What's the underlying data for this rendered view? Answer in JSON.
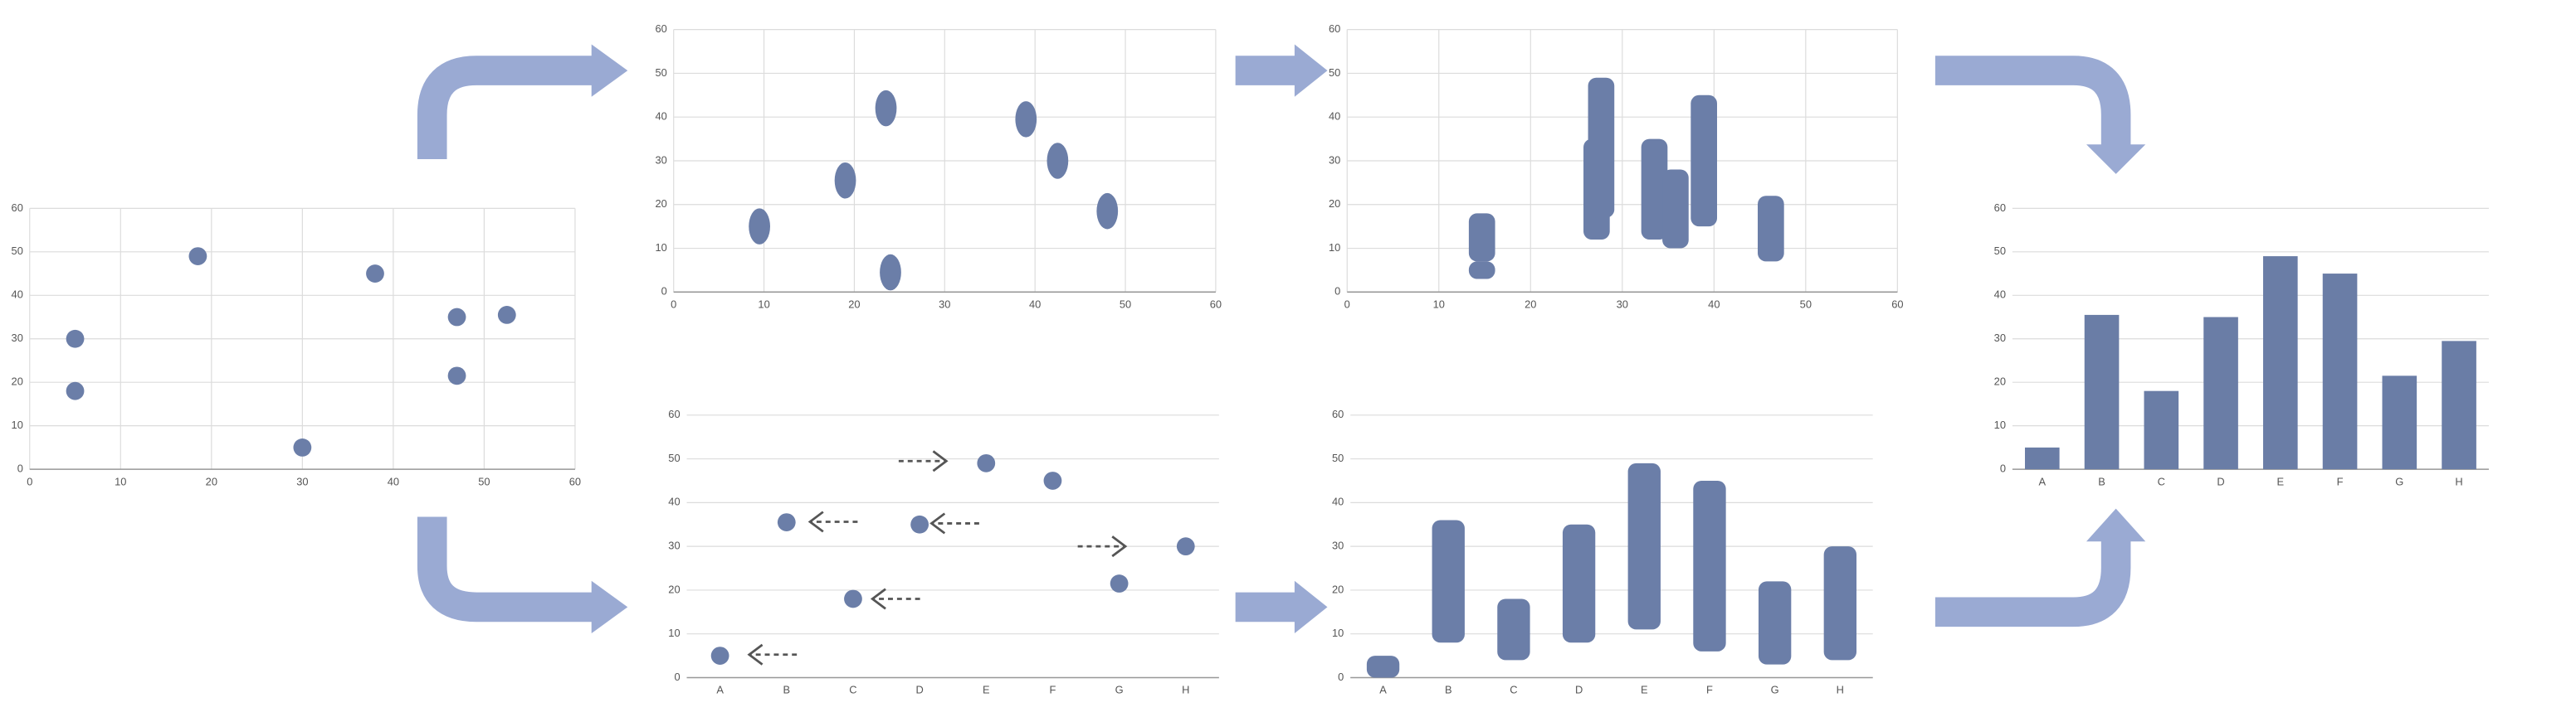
{
  "chart_data": [
    {
      "type": "scatter",
      "x": [
        5,
        5,
        18.5,
        30,
        38,
        47,
        47,
        52.5
      ],
      "y": [
        30,
        18,
        49,
        5,
        45,
        35,
        21.5,
        35.5
      ],
      "color": "#6b7ea8",
      "xlim": [
        0,
        60
      ],
      "xticks": [
        0,
        10,
        20,
        30,
        40,
        50,
        60
      ],
      "ylim": [
        0,
        60
      ],
      "yticks": [
        0,
        10,
        20,
        30,
        40,
        50,
        60
      ],
      "grid": "both"
    },
    {
      "type": "scatter",
      "marker": "ellipse",
      "x": [
        9.5,
        19,
        23.5,
        24,
        39,
        42.5,
        48
      ],
      "y": [
        15,
        25.5,
        42,
        4.5,
        39.5,
        30,
        18.5
      ],
      "color": "#6b7ea8",
      "xlim": [
        0,
        60
      ],
      "xticks": [
        0,
        10,
        20,
        30,
        40,
        50,
        60
      ],
      "ylim": [
        0,
        60
      ],
      "yticks": [
        0,
        10,
        20,
        30,
        40,
        50,
        60
      ],
      "grid": "both"
    },
    {
      "type": "range",
      "x": [
        14.7,
        14.7,
        27.2,
        27.7,
        33.5,
        35.8,
        38.9,
        46.2
      ],
      "low": [
        7,
        3,
        12,
        17,
        12,
        10,
        15,
        7
      ],
      "high": [
        18,
        7,
        35,
        49,
        35,
        28,
        45,
        22
      ],
      "color": "#6b7ea8",
      "xlim": [
        0,
        60
      ],
      "xticks": [
        0,
        10,
        20,
        30,
        40,
        50,
        60
      ],
      "ylim": [
        0,
        60
      ],
      "yticks": [
        0,
        10,
        20,
        30,
        40,
        50,
        60
      ],
      "grid": "both"
    },
    {
      "type": "scatter",
      "categories": [
        "A",
        "B",
        "C",
        "D",
        "E",
        "F",
        "G",
        "H"
      ],
      "y": [
        5,
        35.5,
        18,
        35,
        49,
        45,
        21.5,
        30
      ],
      "color": "#6b7ea8",
      "ylim": [
        0,
        60
      ],
      "yticks": [
        0,
        10,
        20,
        30,
        40,
        50,
        60
      ],
      "grid": "y"
    },
    {
      "type": "range",
      "categories": [
        "A",
        "B",
        "C",
        "D",
        "E",
        "F",
        "G",
        "H"
      ],
      "low": [
        0,
        8,
        4,
        8,
        11,
        6,
        3,
        4
      ],
      "high": [
        5,
        36,
        18,
        35,
        49,
        45,
        22,
        30
      ],
      "color": "#6b7ea8",
      "ylim": [
        0,
        60
      ],
      "yticks": [
        0,
        10,
        20,
        30,
        40,
        50,
        60
      ],
      "grid": "y"
    },
    {
      "type": "bar",
      "categories": [
        "A",
        "B",
        "C",
        "D",
        "E",
        "F",
        "G",
        "H"
      ],
      "values": [
        5,
        35.5,
        18,
        35,
        49,
        45,
        21.5,
        29.5
      ],
      "color": "#6a7da6",
      "ylim": [
        0,
        60
      ],
      "yticks": [
        0,
        10,
        20,
        30,
        40,
        50,
        60
      ],
      "grid": "y"
    }
  ]
}
